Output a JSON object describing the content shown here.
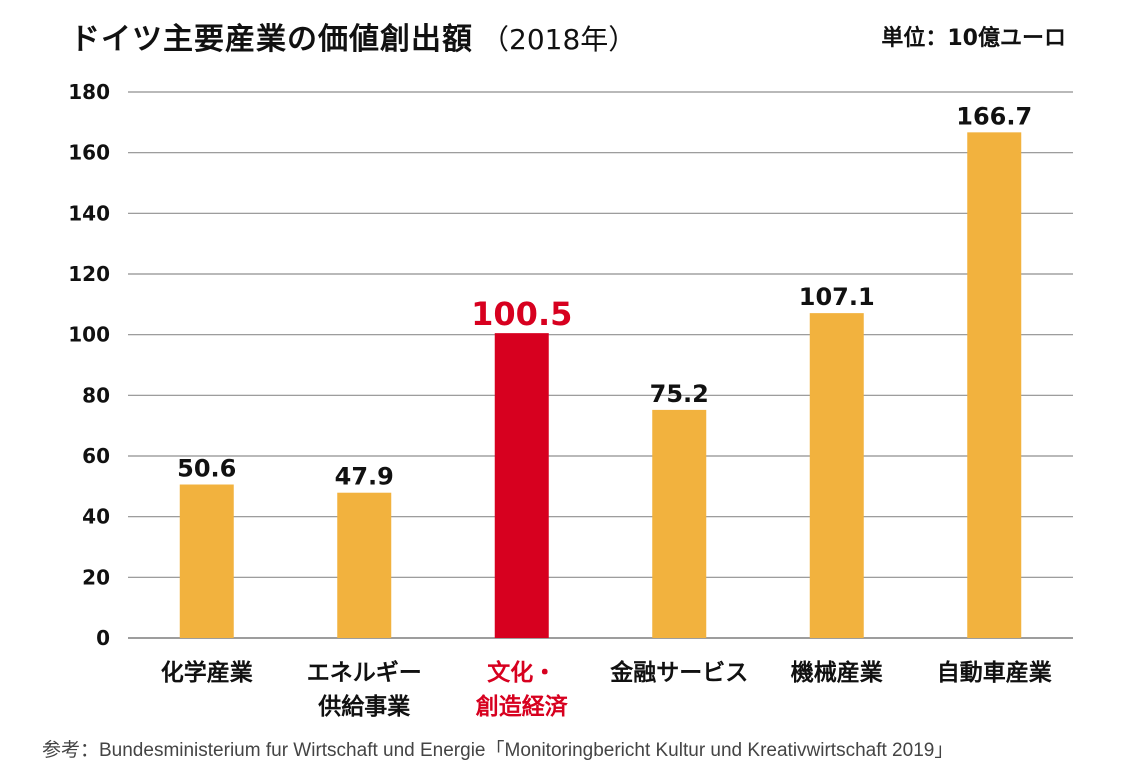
{
  "chart_data": {
    "type": "bar",
    "title": "ドイツ主要産業の価値創出額",
    "subtitle": "（2018年）",
    "unit_label": "単位：10億ユーロ",
    "xlabel": "",
    "ylabel": "",
    "ylim": [
      0,
      180
    ],
    "yticks": [
      0,
      20,
      40,
      60,
      80,
      100,
      120,
      140,
      160,
      180
    ],
    "grid": true,
    "categories": [
      [
        "化学産業"
      ],
      [
        "エネルギー",
        "供給事業"
      ],
      [
        "文化・",
        "創造経済"
      ],
      [
        "金融サービス"
      ],
      [
        "機械産業"
      ],
      [
        "自動車産業"
      ]
    ],
    "values": [
      50.6,
      47.9,
      100.5,
      75.2,
      107.1,
      166.7
    ],
    "value_labels": [
      "50.6",
      "47.9",
      "100.5",
      "75.2",
      "107.1",
      "166.7"
    ],
    "highlight_index": 2,
    "colors": {
      "bar": "#F2B23E",
      "highlight": "#D7001F",
      "grid": "#8F8F8F",
      "text": "#111111"
    },
    "source": "参考：Bundesministerium fur Wirtschaft und Energie「Monitoringbericht Kultur und Kreativwirtschaft 2019」"
  }
}
